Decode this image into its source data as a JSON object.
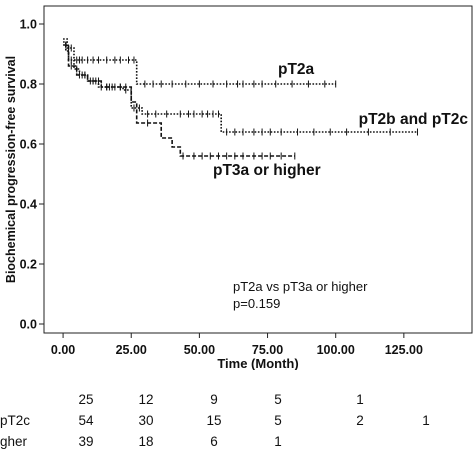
{
  "chart_data": {
    "type": "line",
    "xlabel": "Time (Month)",
    "ylabel": "Biochemical progression-free survival",
    "xlim": [
      -7,
      150
    ],
    "ylim": [
      -0.03,
      1.06
    ],
    "x_ticks": [
      0,
      25,
      50,
      75,
      100,
      125
    ],
    "x_tick_labels": [
      "0.00",
      "25.00",
      "50.00",
      "75.00",
      "100.00",
      "125.00"
    ],
    "y_ticks": [
      0.0,
      0.2,
      0.4,
      0.6,
      0.8,
      1.0
    ],
    "y_tick_labels": [
      "0.0",
      "0.2",
      "0.4",
      "0.6",
      "0.8",
      "1.0"
    ],
    "grid": false,
    "series": [
      {
        "name": "pT2a",
        "label": "pT2a",
        "dash": "dotted",
        "steps": [
          [
            0,
            0.95
          ],
          [
            1.5,
            0.92
          ],
          [
            4,
            0.88
          ],
          [
            8,
            0.88
          ],
          [
            27,
            0.8
          ],
          [
            100,
            0.8
          ]
        ],
        "censors": [
          2,
          3,
          5,
          6,
          7,
          9,
          11,
          13,
          16,
          19,
          21,
          24,
          26,
          30,
          33,
          36,
          40,
          45,
          50,
          55,
          60,
          64,
          66,
          70,
          73,
          78,
          84,
          90,
          96,
          100
        ]
      },
      {
        "name": "pT2b and pT2c",
        "label": "pT2b and pT2c",
        "dash": "dense-dotted",
        "steps": [
          [
            0,
            0.94
          ],
          [
            1,
            0.91
          ],
          [
            2,
            0.88
          ],
          [
            4,
            0.85
          ],
          [
            6,
            0.83
          ],
          [
            9,
            0.81
          ],
          [
            13,
            0.79
          ],
          [
            22,
            0.78
          ],
          [
            25,
            0.72
          ],
          [
            29,
            0.7
          ],
          [
            58,
            0.64
          ],
          [
            130,
            0.64
          ]
        ],
        "censors": [
          3,
          5,
          7,
          8,
          10,
          11,
          12,
          14,
          16,
          17,
          19,
          21,
          23,
          26,
          28,
          31,
          34,
          38,
          43,
          46,
          48,
          51,
          53,
          55,
          57,
          60,
          63,
          66,
          70,
          73,
          76,
          80,
          86,
          92,
          98,
          104,
          112,
          120,
          130
        ]
      },
      {
        "name": "pT3a or higher",
        "label": "pT3a or higher",
        "dash": "dashed",
        "steps": [
          [
            0,
            0.93
          ],
          [
            2,
            0.86
          ],
          [
            5,
            0.83
          ],
          [
            9,
            0.81
          ],
          [
            14,
            0.79
          ],
          [
            25,
            0.74
          ],
          [
            27,
            0.67
          ],
          [
            33,
            0.67
          ],
          [
            36,
            0.62
          ],
          [
            40,
            0.59
          ],
          [
            43,
            0.56
          ],
          [
            85,
            0.56
          ]
        ],
        "censors": [
          1,
          3,
          6,
          8,
          11,
          13,
          16,
          18,
          21,
          23,
          31,
          44,
          48,
          51,
          54,
          57,
          60,
          63,
          66,
          70,
          73,
          76,
          80,
          85
        ]
      }
    ],
    "annotations": [
      "pT2a vs pT3a or higher",
      "p=0.159"
    ]
  },
  "risk_table": {
    "rows": [
      {
        "label": "",
        "values": [
          "25",
          "12",
          "9",
          "5",
          "1",
          ""
        ]
      },
      {
        "label": "pT2c",
        "values": [
          "54",
          "30",
          "15",
          "5",
          "2",
          "1"
        ]
      },
      {
        "label": "gher",
        "values": [
          "39",
          "18",
          "6",
          "1",
          "",
          ""
        ]
      }
    ]
  }
}
